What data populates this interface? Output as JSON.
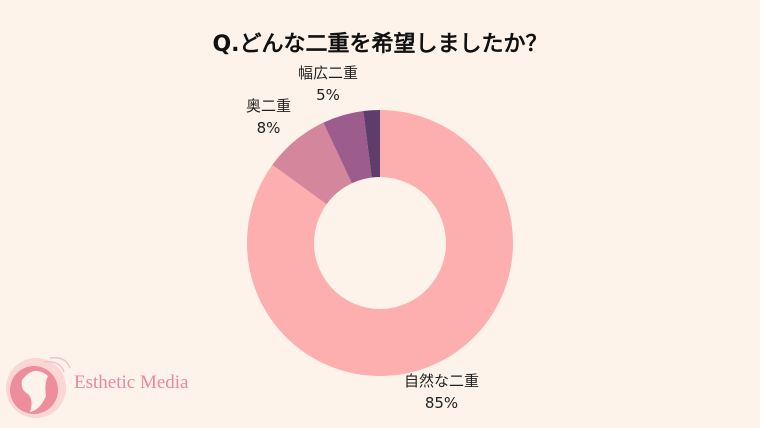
{
  "chart_data": {
    "type": "pie",
    "variant": "donut",
    "title": "Q.どんな二重を希望しましたか？",
    "slices": [
      {
        "label": "自然な二重",
        "value": 85,
        "display": "85%",
        "color": "#fdaeaf"
      },
      {
        "label": "奥二重",
        "value": 8,
        "display": "8%",
        "color": "#d3869c"
      },
      {
        "label": "幅広二重",
        "value": 5,
        "display": "5%",
        "color": "#9c5d8c"
      },
      {
        "label": "",
        "value": 2,
        "display": "",
        "color": "#5e3c6b"
      }
    ]
  },
  "brand": {
    "name": "Esthetic Media",
    "color": "#e78a9b"
  },
  "background": "#fdf3ea"
}
